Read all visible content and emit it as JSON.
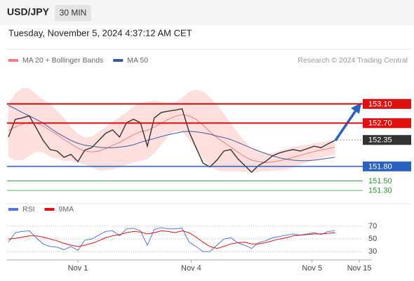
{
  "header": {
    "symbol": "USD/JPY",
    "timeframe": "30 MIN",
    "timestamp": "Tuesday, November 5, 2024 4:37:12 AM CET"
  },
  "chart_data": [
    {
      "type": "line",
      "source": "Research © 2024 Trading Central",
      "xlim": [
        0,
        51
      ],
      "ylim": [
        151.17,
        153.8
      ],
      "color": "#333333",
      "values": [
        152.41,
        152.78,
        152.81,
        152.85,
        152.6,
        152.34,
        152.15,
        152.12,
        151.99,
        152.05,
        151.9,
        152.14,
        152.19,
        152.34,
        152.49,
        152.56,
        152.41,
        152.71,
        152.78,
        152.71,
        152.22,
        152.81,
        152.92,
        152.95,
        152.97,
        153.0,
        152.52,
        152.19,
        151.87,
        151.79,
        151.93,
        152.12,
        152.15,
        151.96,
        151.82,
        151.68,
        151.82,
        151.9,
        152.02,
        152.08,
        152.12,
        152.15,
        152.12,
        152.17,
        152.22,
        152.19,
        152.27,
        152.34
      ],
      "series": [
        {
          "name": "MA 20 + Bollinger Bands",
          "color": "#f08080",
          "band_color": "#ffdede",
          "values": [
            152.55,
            152.62,
            152.68,
            152.72,
            152.7,
            152.64,
            152.55,
            152.46,
            152.36,
            152.27,
            152.18,
            152.12,
            152.1,
            152.12,
            152.17,
            152.24,
            152.3,
            152.38,
            152.46,
            152.52,
            152.55,
            152.62,
            152.7,
            152.78,
            152.84,
            152.88,
            152.85,
            152.78,
            152.66,
            152.52,
            152.4,
            152.3,
            152.2,
            152.1,
            152.0,
            151.93,
            151.9,
            151.88,
            151.89,
            151.92,
            151.95,
            151.99,
            152.03,
            152.07,
            152.11,
            152.14,
            152.17,
            152.2
          ],
          "upper": [
            153.1,
            153.32,
            153.43,
            153.42,
            153.3,
            153.19,
            153.1,
            152.96,
            152.81,
            152.62,
            152.48,
            152.4,
            152.42,
            152.52,
            152.62,
            152.74,
            152.82,
            152.93,
            153.04,
            153.12,
            153.15,
            153.17,
            153.15,
            153.13,
            153.14,
            153.23,
            153.35,
            153.4,
            153.36,
            153.24,
            153.08,
            152.9,
            152.7,
            152.5,
            152.32,
            152.18,
            152.1,
            152.06,
            152.07,
            152.12,
            152.17,
            152.21,
            152.23,
            152.25,
            152.28,
            152.3,
            152.33,
            152.36
          ],
          "lower": [
            152.0,
            151.92,
            151.93,
            152.02,
            152.1,
            152.09,
            152.0,
            151.96,
            151.91,
            151.92,
            151.88,
            151.84,
            151.78,
            151.72,
            151.72,
            151.74,
            151.78,
            151.83,
            151.88,
            151.92,
            151.95,
            152.07,
            152.25,
            152.43,
            152.54,
            152.53,
            152.35,
            152.16,
            151.96,
            151.8,
            151.72,
            151.7,
            151.7,
            151.7,
            151.68,
            151.68,
            151.7,
            151.7,
            151.71,
            151.72,
            151.73,
            151.77,
            151.83,
            151.89,
            151.94,
            151.98,
            152.01,
            152.04
          ]
        },
        {
          "name": "MA 50",
          "color": "#3a5a9c",
          "values": [
            153.07,
            153.0,
            152.92,
            152.85,
            152.78,
            152.7,
            152.6,
            152.5,
            152.42,
            152.34,
            152.28,
            152.24,
            152.22,
            152.2,
            152.19,
            152.19,
            152.2,
            152.22,
            152.25,
            152.3,
            152.34,
            152.38,
            152.42,
            152.46,
            152.49,
            152.52,
            152.53,
            152.52,
            152.5,
            152.47,
            152.43,
            152.4,
            152.36,
            152.3,
            152.24,
            152.18,
            152.12,
            152.07,
            152.02,
            151.98,
            151.95,
            151.93,
            151.92,
            151.92,
            151.93,
            151.95,
            151.97,
            151.99
          ]
        }
      ],
      "levels": [
        {
          "value": 153.1,
          "label": "153.10",
          "color": "#e01010",
          "box": true
        },
        {
          "value": 152.7,
          "label": "152.70",
          "color": "#e01010",
          "box": true
        },
        {
          "value": 152.35,
          "label": "152.35",
          "color": "#333333",
          "box": true
        },
        {
          "value": 151.8,
          "label": "151.80",
          "color": "#2a62c0",
          "box": true
        },
        {
          "value": 151.5,
          "label": "151.50",
          "color": "#2a9a2a",
          "box": false
        },
        {
          "value": 151.3,
          "label": "151.30",
          "color": "#2a9a2a",
          "box": false
        }
      ]
    },
    {
      "type": "line",
      "xlim": [
        0,
        51
      ],
      "ylim": [
        19,
        78
      ],
      "yticks": [
        70,
        50,
        30
      ],
      "xticks": [
        {
          "value": 10,
          "label": "Nov 1"
        },
        {
          "value": 26.3,
          "label": "Nov 4"
        },
        {
          "value": 43.7,
          "label": "Nov 5"
        },
        {
          "value": 50.5,
          "label": "Nov 15"
        }
      ],
      "series": [
        {
          "name": "RSI",
          "color": "#5577dd",
          "values": [
            45,
            60,
            62,
            63,
            52,
            42,
            38,
            37,
            33,
            38,
            32,
            48,
            50,
            56,
            62,
            63,
            55,
            66,
            67,
            63,
            40,
            65,
            68,
            66,
            66,
            67,
            45,
            38,
            30,
            30,
            40,
            50,
            52,
            44,
            40,
            35,
            44,
            47,
            52,
            54,
            56,
            58,
            56,
            58,
            60,
            57,
            62,
            63
          ]
        },
        {
          "name": "9MA",
          "color": "#e01010",
          "values": [
            50,
            51,
            53,
            55,
            55,
            53,
            50,
            47,
            43,
            40,
            38,
            40,
            43,
            47,
            52,
            55,
            57,
            60,
            62,
            61,
            58,
            60,
            63,
            62,
            60,
            63,
            60,
            53,
            45,
            38,
            35,
            38,
            42,
            44,
            45,
            42,
            42,
            44,
            47,
            50,
            52,
            55,
            56,
            57,
            58,
            58,
            59,
            60
          ]
        }
      ]
    }
  ]
}
